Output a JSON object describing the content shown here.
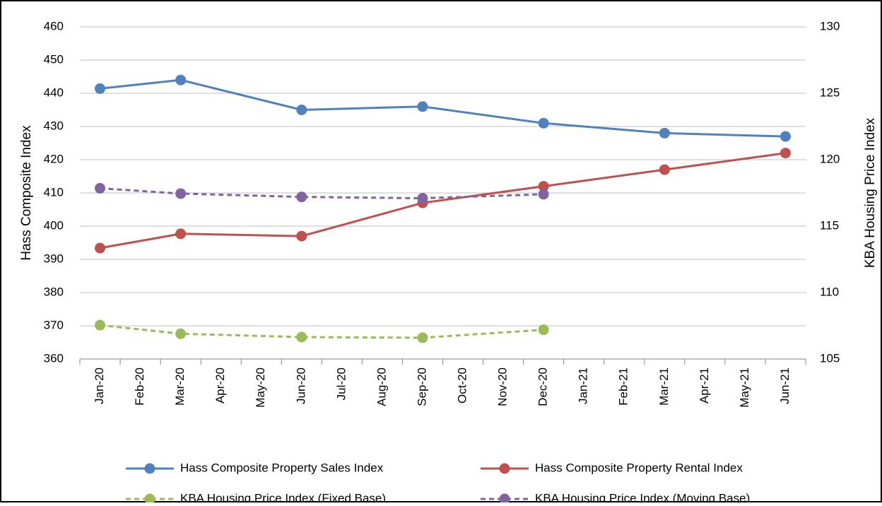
{
  "chart_data": {
    "type": "line",
    "categories": [
      "Jan-20",
      "Feb-20",
      "Mar-20",
      "Apr-20",
      "May-20",
      "Jun-20",
      "Jul-20",
      "Aug-20",
      "Sep-20",
      "Oct-20",
      "Nov-20",
      "Dec-20",
      "Jan-21",
      "Feb-21",
      "Mar-21",
      "Apr-21",
      "May-21",
      "Jun-21"
    ],
    "y_label": "Hass Composite Index",
    "y2_label": "KBA Housing Price Index",
    "ylim": [
      360,
      460
    ],
    "yticks": [
      360,
      370,
      380,
      390,
      400,
      410,
      420,
      430,
      440,
      450,
      460
    ],
    "y2lim": [
      105,
      130
    ],
    "y2ticks": [
      105,
      110,
      115,
      120,
      125,
      130
    ],
    "grid": true,
    "span_gaps": true,
    "legend": "bottom",
    "series": [
      {
        "name": "Hass Composite Property Sales Index",
        "color": "#4f81bd",
        "dash": false,
        "values": [
          441.4,
          null,
          444,
          null,
          null,
          435,
          null,
          null,
          436,
          null,
          null,
          431,
          null,
          null,
          428,
          null,
          null,
          427
        ]
      },
      {
        "name": "Hass Composite Property Rental Index",
        "color": "#c0504d",
        "dash": false,
        "values": [
          393.4,
          null,
          397.7,
          null,
          null,
          397,
          null,
          null,
          407,
          null,
          null,
          412,
          null,
          null,
          417,
          null,
          null,
          422
        ]
      },
      {
        "name": "KBA Housing Price Index (Fixed Base)",
        "color": "#9bbb59",
        "dash": true,
        "axis": "y2",
        "values": [
          107.55,
          null,
          106.9,
          null,
          null,
          106.65,
          null,
          null,
          106.6,
          null,
          null,
          107.2,
          null,
          null,
          null,
          null,
          null,
          null
        ]
      },
      {
        "name": "KBA Housing Price Index (Moving Base)",
        "color": "#8064a2",
        "dash": true,
        "axis": "y2",
        "values": [
          117.85,
          null,
          117.45,
          null,
          null,
          117.2,
          null,
          null,
          117.1,
          null,
          null,
          117.4,
          null,
          null,
          null,
          null,
          null,
          null
        ]
      }
    ]
  }
}
